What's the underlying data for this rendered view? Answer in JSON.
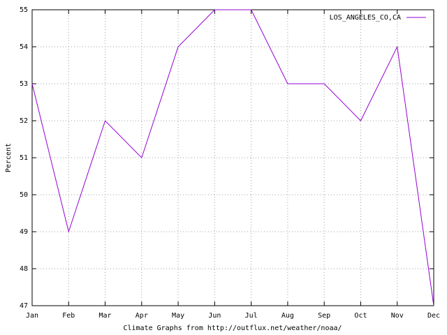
{
  "chart_data": {
    "type": "line",
    "y_label": "Percent",
    "x_label": "Climate Graphs from http://outflux.net/weather/noaa/",
    "categories": [
      "Jan",
      "Feb",
      "Mar",
      "Apr",
      "May",
      "Jun",
      "Jul",
      "Aug",
      "Sep",
      "Oct",
      "Nov",
      "Dec"
    ],
    "series": [
      {
        "name": "LOS_ANGELES_CO,CA",
        "color": "#9400d3",
        "values": [
          53,
          49,
          52,
          51,
          54,
          55,
          55,
          53,
          53,
          52,
          54,
          47
        ]
      }
    ],
    "ylim": [
      47,
      55
    ],
    "yticks": [
      47,
      48,
      49,
      50,
      51,
      52,
      53,
      54,
      55
    ],
    "grid": true,
    "legend": "top-right"
  }
}
